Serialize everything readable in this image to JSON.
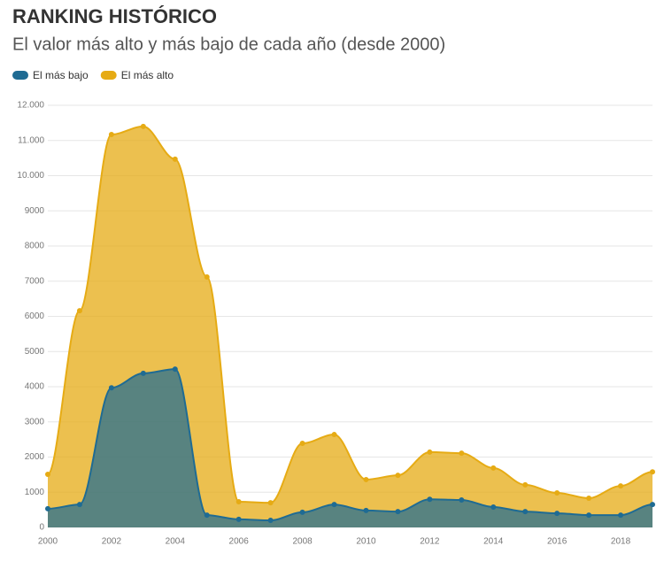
{
  "chart_data": {
    "type": "area",
    "title": "RANKING HISTÓRICO",
    "subtitle": "El valor más alto y más bajo de cada año (desde 2000)",
    "x": [
      2000,
      2001,
      2002,
      2003,
      2004,
      2005,
      2006,
      2007,
      2008,
      2009,
      2010,
      2011,
      2012,
      2013,
      2014,
      2015,
      2016,
      2017,
      2018,
      2019
    ],
    "series": [
      {
        "name": "El más bajo",
        "color": "#1f6b93",
        "values": [
          530,
          650,
          3970,
          4380,
          4500,
          350,
          230,
          200,
          430,
          650,
          480,
          450,
          800,
          780,
          580,
          450,
          400,
          350,
          350,
          650
        ]
      },
      {
        "name": "El más alto",
        "color": "#e6ab14",
        "values": [
          1510,
          6160,
          11170,
          11400,
          10470,
          7120,
          730,
          700,
          2390,
          2640,
          1360,
          1480,
          2140,
          2110,
          1690,
          1210,
          980,
          830,
          1180,
          1580
        ]
      }
    ],
    "xlim": [
      2000,
      2019
    ],
    "xticks": [
      2000,
      2002,
      2004,
      2006,
      2008,
      2010,
      2012,
      2014,
      2016,
      2018
    ],
    "ylim": [
      0,
      12000
    ],
    "yticks": [
      0,
      1000,
      2000,
      3000,
      4000,
      5000,
      6000,
      7000,
      8000,
      9000,
      {
        "value": 10000,
        "label": "10.000"
      },
      {
        "value": 11000,
        "label": "11.000"
      },
      {
        "value": 12000,
        "label": "12.000"
      }
    ],
    "grid": true
  }
}
